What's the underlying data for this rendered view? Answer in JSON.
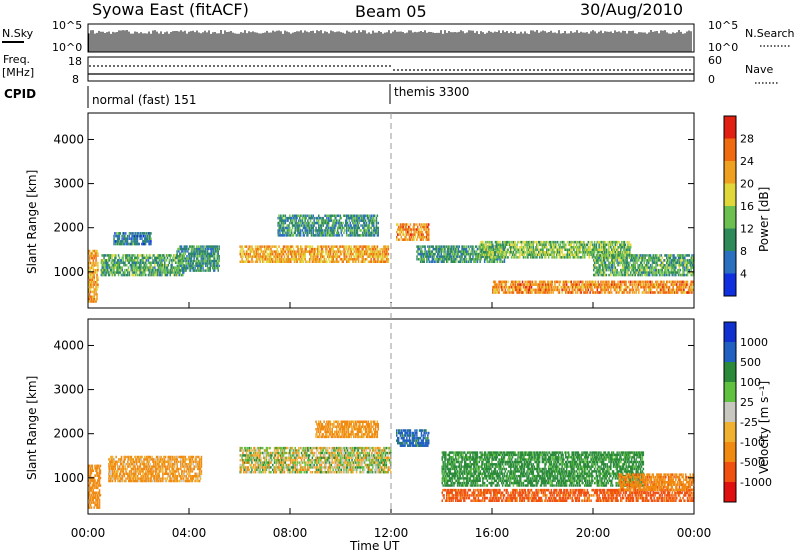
{
  "header": {
    "station": "Syowa East (fitACF)",
    "beam": "Beam 05",
    "date": "30/Aug/2010"
  },
  "top_panels": {
    "nsky": {
      "label": "N.Sky",
      "ticks": [
        "10^5",
        "10^0"
      ]
    },
    "nsearch": {
      "label": "N.Search",
      "ticks": [
        "10^5",
        "10^0"
      ]
    },
    "freq": {
      "label_line1": "Freq.",
      "label_line2": "[MHz]",
      "ticks": [
        "18",
        "8"
      ]
    },
    "nave": {
      "label": "Nave",
      "ticks": [
        "60",
        "0"
      ]
    },
    "cpid": {
      "label": "CPID",
      "modes": [
        {
          "name": "normal (fast) 151",
          "start_hour": 0
        },
        {
          "name": "themis 3300",
          "start_hour": 12
        }
      ]
    }
  },
  "colors": {
    "power": [
      "#1030e0",
      "#2a6fc0",
      "#2f8a5a",
      "#6cc050",
      "#e0d83a",
      "#f0a020",
      "#f06a10",
      "#e02010"
    ],
    "velocity": [
      "#e01010",
      "#f05010",
      "#f08a10",
      "#f0b030",
      "#c8c8c0",
      "#60c040",
      "#2a8a3a",
      "#2060c0",
      "#1030d0"
    ],
    "divider": "#999999"
  },
  "chart_data": [
    {
      "type": "heatmap",
      "panel": "power",
      "ylabel": "Slant Range [km]",
      "xlabel": "",
      "ylim": [
        180,
        4600
      ],
      "xlim": [
        0,
        24
      ],
      "yticks": [
        "1000",
        "2000",
        "3000",
        "4000"
      ],
      "colorbar": {
        "label": "Power [dB]",
        "ticks": [
          "4",
          "8",
          "12",
          "16",
          "20",
          "24",
          "28"
        ],
        "range": [
          0,
          32
        ]
      },
      "regions": [
        {
          "t0": 0.0,
          "t1": 0.4,
          "r0": 300,
          "r1": 1500,
          "value": 22
        },
        {
          "t0": 0.5,
          "t1": 3.8,
          "r0": 900,
          "r1": 1400,
          "value": 12
        },
        {
          "t0": 1.0,
          "t1": 2.5,
          "r0": 1600,
          "r1": 1900,
          "value": 8
        },
        {
          "t0": 3.5,
          "t1": 5.2,
          "r0": 1000,
          "r1": 1600,
          "value": 10
        },
        {
          "t0": 6.0,
          "t1": 11.9,
          "r0": 1200,
          "r1": 1600,
          "value": 22
        },
        {
          "t0": 7.5,
          "t1": 11.5,
          "r0": 1800,
          "r1": 2300,
          "value": 10
        },
        {
          "t0": 12.2,
          "t1": 13.5,
          "r0": 1700,
          "r1": 2100,
          "value": 24
        },
        {
          "t0": 13.0,
          "t1": 16.5,
          "r0": 1200,
          "r1": 1600,
          "value": 10
        },
        {
          "t0": 15.5,
          "t1": 21.5,
          "r0": 1300,
          "r1": 1700,
          "value": 14
        },
        {
          "t0": 16.0,
          "t1": 24.0,
          "r0": 500,
          "r1": 800,
          "value": 24
        },
        {
          "t0": 20.0,
          "t1": 24.0,
          "r0": 900,
          "r1": 1400,
          "value": 12
        }
      ]
    },
    {
      "type": "heatmap",
      "panel": "velocity",
      "ylabel": "Slant Range [km]",
      "xlabel": "Time UT",
      "ylim": [
        180,
        4600
      ],
      "xlim": [
        0,
        24
      ],
      "yticks": [
        "1000",
        "2000",
        "3000",
        "4000"
      ],
      "xticks": [
        "00:00",
        "04:00",
        "08:00",
        "12:00",
        "16:00",
        "20:00",
        "00:00"
      ],
      "colorbar": {
        "label": "Velocity [m s⁻¹]",
        "ticks": [
          "1000",
          "500",
          "100",
          "25",
          "-25",
          "-100",
          "-500",
          "-1000"
        ]
      },
      "regions": [
        {
          "t0": 0.0,
          "t1": 0.5,
          "r0": 300,
          "r1": 1300,
          "value": -300
        },
        {
          "t0": 0.8,
          "t1": 4.5,
          "r0": 900,
          "r1": 1500,
          "value": -150
        },
        {
          "t0": 6.0,
          "t1": 12.0,
          "r0": 1100,
          "r1": 1700,
          "value": 0
        },
        {
          "t0": 9.0,
          "t1": 11.5,
          "r0": 1900,
          "r1": 2300,
          "value": -200
        },
        {
          "t0": 12.2,
          "t1": 13.5,
          "r0": 1700,
          "r1": 2100,
          "value": 600
        },
        {
          "t0": 14.0,
          "t1": 22.0,
          "r0": 800,
          "r1": 1600,
          "value": 200
        },
        {
          "t0": 14.0,
          "t1": 24.0,
          "r0": 450,
          "r1": 750,
          "value": -600
        },
        {
          "t0": 21.0,
          "t1": 24.0,
          "r0": 700,
          "r1": 1100,
          "value": -400
        }
      ]
    }
  ]
}
